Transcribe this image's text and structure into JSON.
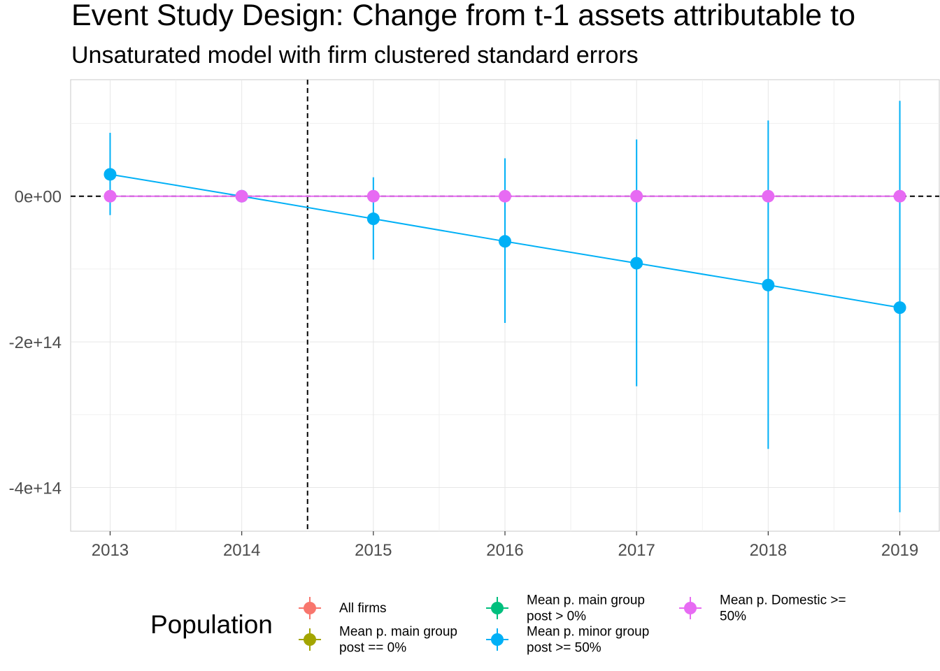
{
  "chart_data": {
    "type": "scatter",
    "title": "Event Study Design: Change from t-1 assets attributable to",
    "subtitle": "Unsaturated model with firm clustered standard errors",
    "xlabel": "",
    "ylabel": "",
    "x": [
      2013,
      2014,
      2015,
      2016,
      2017,
      2018,
      2019
    ],
    "x_tick_labels": [
      "2013",
      "2014",
      "2015",
      "2016",
      "2017",
      "2018",
      "2019"
    ],
    "xlim": [
      2012.7,
      2019.3
    ],
    "y_tick_values": [
      0,
      -200000000000000.0,
      -400000000000000.0
    ],
    "y_tick_labels": [
      "0e+00",
      "-2e+14",
      "-4e+14"
    ],
    "ylim": [
      -460000000000000.0,
      160000000000000.0
    ],
    "grid": true,
    "reference_lines": {
      "horizontal_y": 0,
      "vertical_x": 2014.5,
      "style": "dashed"
    },
    "legend": {
      "title": "Population",
      "placement": "bottom",
      "entries": [
        {
          "label_lines": [
            "All firms"
          ],
          "color": "#F8766D"
        },
        {
          "label_lines": [
            "Mean p. main group",
            "post == 0%"
          ],
          "color": "#A3A500"
        },
        {
          "label_lines": [
            "Mean p. main group",
            "post > 0%"
          ],
          "color": "#00BF7D"
        },
        {
          "label_lines": [
            "Mean p. minor group",
            "post >= 50%"
          ],
          "color": "#00B0F6"
        },
        {
          "label_lines": [
            "Mean p. Domestic >=",
            "50%"
          ],
          "color": "#E76BF3"
        }
      ]
    },
    "series": [
      {
        "name": "Mean p. minor group post >= 50%",
        "color": "#00B0F6",
        "x": [
          2013,
          2014,
          2015,
          2016,
          2017,
          2018,
          2019
        ],
        "y": [
          30000000000000.0,
          0,
          -31000000000000.0,
          -62000000000000.0,
          -92000000000000.0,
          -122000000000000.0,
          -153000000000000.0
        ],
        "ci_lower": [
          -26000000000000.0,
          0,
          -87000000000000.0,
          -174000000000000.0,
          -261000000000000.0,
          -347000000000000.0,
          -434000000000000.0
        ],
        "ci_upper": [
          87000000000000.0,
          0,
          26000000000000.0,
          52000000000000.0,
          78000000000000.0,
          104000000000000.0,
          131000000000000.0
        ],
        "show_line": true
      },
      {
        "name": "Mean p. Domestic >= 50%",
        "color": "#E76BF3",
        "x": [
          2013,
          2014,
          2015,
          2016,
          2017,
          2018,
          2019
        ],
        "y": [
          0,
          0,
          0,
          0,
          0,
          0,
          0
        ],
        "ci_lower": [
          0,
          0,
          0,
          0,
          0,
          0,
          0
        ],
        "ci_upper": [
          0,
          0,
          0,
          0,
          0,
          0,
          0
        ],
        "show_line": true
      }
    ]
  }
}
